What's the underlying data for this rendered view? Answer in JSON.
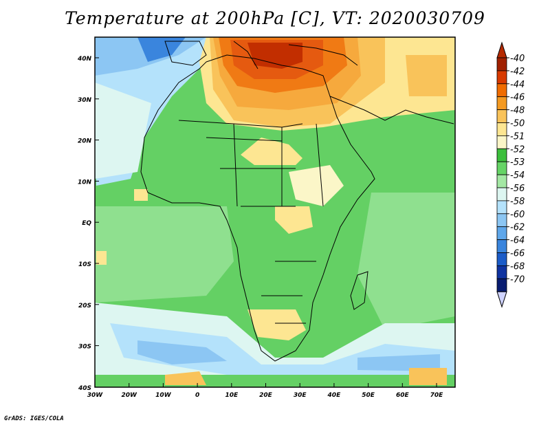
{
  "title": "Temperature at 200hPa [C], VT: 2020030709",
  "credit": "GrADS: IGES/COLA",
  "map": {
    "lat_labels": [
      "40N",
      "30N",
      "20N",
      "10N",
      "EQ",
      "10S",
      "20S",
      "30S",
      "40S"
    ],
    "lon_labels": [
      "30W",
      "20W",
      "10W",
      "0",
      "10E",
      "20E",
      "30E",
      "40E",
      "50E",
      "60E",
      "70E"
    ]
  },
  "colorbar": {
    "labels": [
      "-40",
      "-42",
      "-44",
      "-46",
      "-48",
      "-50",
      "-51",
      "-52",
      "-53",
      "-54",
      "-56",
      "-58",
      "-60",
      "-62",
      "-64",
      "-66",
      "-68",
      "-70"
    ],
    "colors": [
      "#a02000",
      "#d83a00",
      "#f06c00",
      "#f49a22",
      "#f9c35a",
      "#fde692",
      "#fbf6c8",
      "#3cbf3c",
      "#66d466",
      "#a4e8a4",
      "#ddf6f1",
      "#b4e2fb",
      "#8cc6f3",
      "#5fa7ea",
      "#3a85dd",
      "#1b5cc8",
      "#0f33a0",
      "#081c70"
    ],
    "over_color": "#b52a00",
    "under_color": "#cfd3ff"
  },
  "field": {
    "background": "#64d064",
    "regions": [
      {
        "name": "north-hot",
        "color": "#f6a93d"
      },
      {
        "name": "mediterranean-core",
        "color": "#e55a10"
      },
      {
        "name": "aegean-core",
        "color": "#c22e00"
      },
      {
        "name": "atlantic-cold",
        "color": "#b4e2fb"
      },
      {
        "name": "southern-cold",
        "color": "#a9d9f7"
      },
      {
        "name": "highland-warm",
        "color": "#fbe18f"
      }
    ]
  }
}
